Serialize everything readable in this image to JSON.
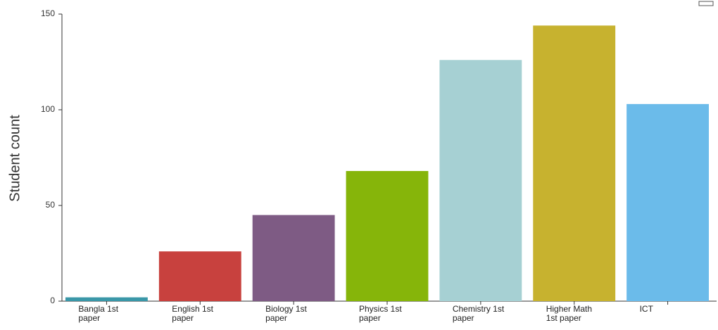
{
  "chart_data": {
    "type": "bar",
    "y_label": "Student count",
    "categories": [
      "Bangla 1st paper",
      "English 1st paper",
      "Biology 1st paper",
      "Physics 1st paper",
      "Chemistry 1st paper",
      "Higher Math 1st paper",
      "ICT"
    ],
    "values": [
      2,
      26,
      45,
      68,
      126,
      144,
      103
    ],
    "colors": [
      "#3a97a8",
      "#c8413e",
      "#7e5b84",
      "#86b50a",
      "#a6d0d3",
      "#c7b22f",
      "#6bbbea"
    ],
    "ylim": [
      0,
      150
    ],
    "yticks": [
      0,
      50,
      100,
      150
    ]
  }
}
